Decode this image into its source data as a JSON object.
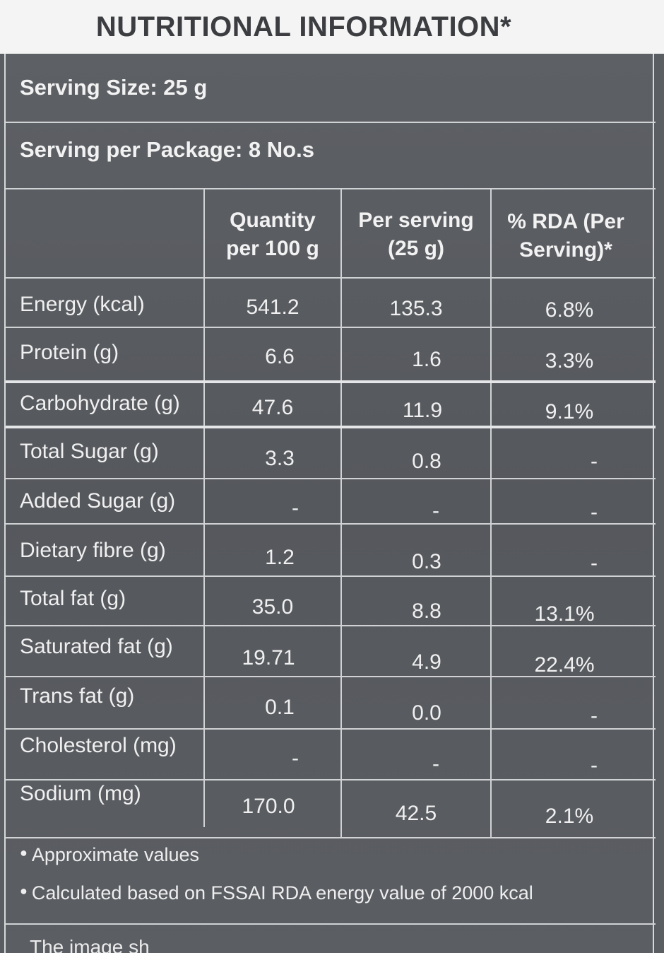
{
  "title": "NUTRITIONAL INFORMATION*",
  "serving_size": "Serving Size: 25 g",
  "serving_per_package": "Serving per Package: 8 No.s",
  "headers": {
    "qty_line1": "Quantity",
    "qty_line2": "per 100 g",
    "per_line1": "Per serving",
    "per_line2": "(25 g)",
    "rda_line1": "% RDA (Per",
    "rda_line2": "Serving)*"
  },
  "rows": [
    {
      "label": "Energy (kcal)",
      "qty": "541.2",
      "per": "135.3",
      "rda": "6.8%"
    },
    {
      "label": "Protein (g)",
      "qty": "6.6",
      "per": "1.6",
      "rda": "3.3%"
    },
    {
      "label": "Carbohydrate (g)",
      "qty": "47.6",
      "per": "11.9",
      "rda": "9.1%"
    },
    {
      "label": "Total Sugar (g)",
      "qty": "3.3",
      "per": "0.8",
      "rda": "-"
    },
    {
      "label": "Added Sugar (g)",
      "qty": "-",
      "per": "-",
      "rda": "-"
    },
    {
      "label": "Dietary fibre (g)",
      "qty": "1.2",
      "per": "0.3",
      "rda": "-"
    },
    {
      "label": "Total fat (g)",
      "qty": "35.0",
      "per": "8.8",
      "rda": "13.1%"
    },
    {
      "label": "Saturated fat (g)",
      "qty": "19.71",
      "per": "4.9",
      "rda": "22.4%"
    },
    {
      "label": "Trans fat (g)",
      "qty": "0.1",
      "per": "0.0",
      "rda": "-"
    },
    {
      "label": "Cholesterol (mg)",
      "qty": "-",
      "per": "-",
      "rda": "-"
    },
    {
      "label": "Sodium (mg)",
      "qty": "170.0",
      "per": "42.5",
      "rda": "2.1%"
    }
  ],
  "notes": {
    "note1": "Approximate values",
    "note2": "Calculated based on FSSAI RDA energy value of 2000 kcal",
    "cut_text": "The image sh"
  }
}
